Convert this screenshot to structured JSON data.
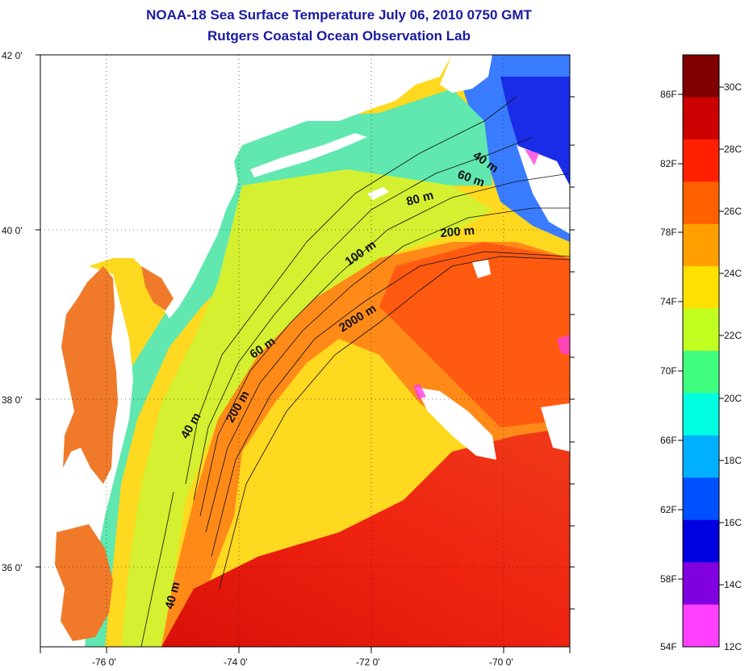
{
  "title": {
    "line1": "NOAA-18 Sea Surface Temperature July 06, 2010 0750 GMT",
    "line2": "Rutgers Coastal Ocean Observation Lab"
  },
  "lat_labels": [
    "42 0'",
    "40 0'",
    "38 0'",
    "36 0'"
  ],
  "lon_labels": [
    "-76 0'",
    "-74 0'",
    "-72 0'",
    "-70 0'"
  ],
  "contour_labels": [
    "40 m",
    "60 m",
    "80 m",
    "200 m",
    "100 m",
    "2000 m",
    "60 m",
    "40 m",
    "200 m",
    "40 m"
  ],
  "colorbar": {
    "f_labels": [
      "86F",
      "82F",
      "78F",
      "74F",
      "70F",
      "66F",
      "62F",
      "58F",
      "54F"
    ],
    "c_labels": [
      "30C",
      "28C",
      "26C",
      "24C",
      "22C",
      "20C",
      "18C",
      "16C",
      "14C",
      "12C"
    ],
    "colors": [
      "#800000",
      "#cc0000",
      "#ff2000",
      "#ff6000",
      "#ffa000",
      "#ffe000",
      "#c0ff20",
      "#40ff80",
      "#00ffe0",
      "#00b0ff",
      "#0050ff",
      "#0000e0",
      "#8000e0",
      "#ff40ff"
    ]
  },
  "palette": {
    "land": "#ffffff",
    "bay": "#f07a2a",
    "gulf_stream": "#ee1a10",
    "slope": "#ff6a12",
    "shelf_warm": "#ffd820",
    "shelf": "#d4f030",
    "coastal": "#50e6a8",
    "cold": "#2050ff",
    "clouds": "#ff40e0"
  }
}
